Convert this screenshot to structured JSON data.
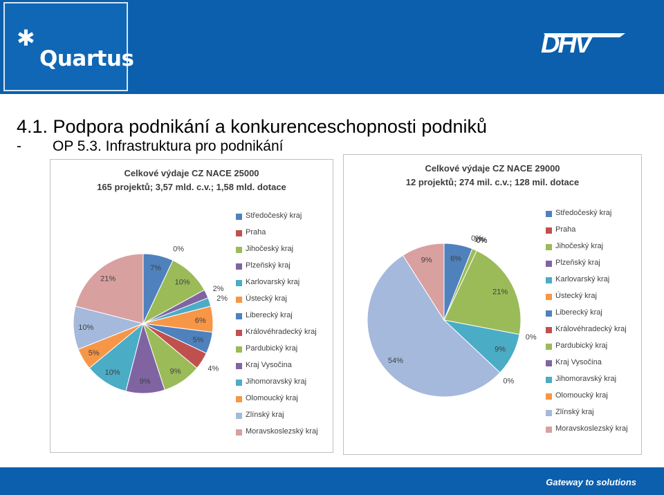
{
  "header": {
    "logo_text": "Quartus",
    "partner_logo_text": "DHV"
  },
  "slide": {
    "title": "4.1. Podpora podnikání a konkurenceschopnosti podniků",
    "subtitle_dash": "-",
    "subtitle": "OP 5.3. Infrastruktura pro podnikání"
  },
  "footer": {
    "tagline": "Gateway to solutions"
  },
  "colors": {
    "header_blue": "#0b5fad",
    "series": [
      "#4f81bd",
      "#c0504d",
      "#9bbb59",
      "#8064a2",
      "#4bacc6",
      "#f79646",
      "#4f81bd",
      "#c0504d",
      "#9bbb59",
      "#8064a2",
      "#4bacc6",
      "#f79646",
      "#a5b9dc",
      "#d9a0a0"
    ]
  },
  "chart_data": [
    {
      "type": "pie",
      "title": "Celkové výdaje CZ NACE 25000",
      "subtitle": "165 projektů; 3,57 mld. c.v.; 1,58 mld. dotace",
      "categories": [
        "Středočeský kraj",
        "Praha",
        "Jihočeský kraj",
        "Plzeňský kraj",
        "Karlovarský kraj",
        "Ústecký kraj",
        "Liberecký kraj",
        "Královéhradecký kraj",
        "Pardubický kraj",
        "Kraj Vysočina",
        "Jihomoravský kraj",
        "Olomoucký kraj",
        "Zlínský kraj",
        "Moravskoslezský kraj"
      ],
      "values": [
        7,
        0,
        10,
        2,
        2,
        6,
        5,
        4,
        9,
        9,
        10,
        5,
        10,
        21
      ],
      "data_labels": [
        "7%",
        "0%",
        "10%",
        "2%",
        "2%",
        "6%",
        "5%",
        "4%",
        "9%",
        "9%",
        "10%",
        "5%",
        "10%",
        "21%"
      ],
      "legend_position": "right"
    },
    {
      "type": "pie",
      "title": "Celkové výdaje CZ NACE 29000",
      "subtitle": "12 projektů; 274 mil. c.v.; 128 mil. dotace",
      "categories": [
        "Středočeský kraj",
        "Praha",
        "Jihočeský kraj",
        "Plzeňský kraj",
        "Karlovarský kraj",
        "Ústecký kraj",
        "Liberecký kraj",
        "Královéhradecký kraj",
        "Pardubický kraj",
        "Kraj Vysočina",
        "Jihomoravský kraj",
        "Olomoucký kraj",
        "Zlínský kraj",
        "Moravskoslezský kraj"
      ],
      "values": [
        6,
        0,
        1,
        0,
        0,
        0,
        0,
        0,
        21,
        0,
        9,
        0,
        54,
        9
      ],
      "data_labels": [
        "6%",
        "0%",
        "1%",
        "0%",
        "0%",
        "0%",
        "0%",
        "0%",
        "21%",
        "0%",
        "9%",
        "0%",
        "54%",
        "9%"
      ],
      "legend_position": "right"
    }
  ]
}
